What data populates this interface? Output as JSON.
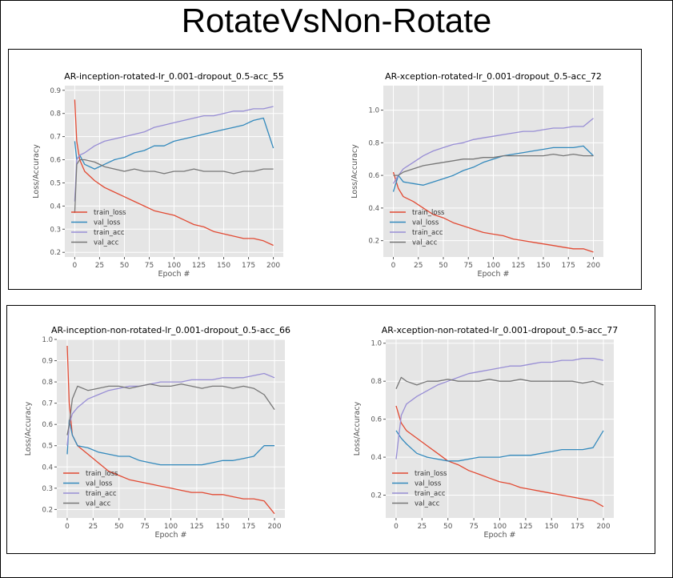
{
  "page_title": "RotateVsNon-Rotate",
  "colors": {
    "train_loss": "#E24A33",
    "val_loss": "#348ABD",
    "train_acc": "#988ED5",
    "val_acc": "#777777",
    "plot_bg": "#E5E5E5",
    "grid": "#FFFFFF"
  },
  "chart_data": [
    {
      "type": "line",
      "title": "AR-inception-rotated-lr_0.001-dropout_0.5-acc_55",
      "xlabel": "Epoch #",
      "ylabel": "Loss/Accuracy",
      "xlim": [
        -10,
        210
      ],
      "ylim": [
        0.18,
        0.92
      ],
      "xticks": [
        0,
        25,
        50,
        75,
        100,
        125,
        150,
        175,
        200
      ],
      "yticks": [
        0.2,
        0.3,
        0.4,
        0.5,
        0.6,
        0.7,
        0.8,
        0.9
      ],
      "legend_position": "lower-left",
      "series": [
        {
          "name": "train_loss",
          "x": [
            0,
            2,
            5,
            10,
            20,
            30,
            40,
            50,
            60,
            70,
            80,
            90,
            100,
            110,
            120,
            130,
            140,
            150,
            160,
            170,
            180,
            190,
            200
          ],
          "values": [
            0.86,
            0.68,
            0.6,
            0.55,
            0.51,
            0.48,
            0.46,
            0.44,
            0.42,
            0.4,
            0.38,
            0.37,
            0.36,
            0.34,
            0.32,
            0.31,
            0.29,
            0.28,
            0.27,
            0.26,
            0.26,
            0.25,
            0.23
          ]
        },
        {
          "name": "val_loss",
          "x": [
            0,
            2,
            5,
            10,
            20,
            30,
            40,
            50,
            60,
            70,
            80,
            90,
            100,
            110,
            120,
            130,
            140,
            150,
            160,
            170,
            180,
            190,
            200
          ],
          "values": [
            0.68,
            0.6,
            0.62,
            0.58,
            0.56,
            0.58,
            0.6,
            0.61,
            0.63,
            0.64,
            0.66,
            0.66,
            0.68,
            0.69,
            0.7,
            0.71,
            0.72,
            0.73,
            0.74,
            0.75,
            0.77,
            0.78,
            0.65
          ]
        },
        {
          "name": "train_acc",
          "x": [
            0,
            2,
            5,
            10,
            20,
            30,
            40,
            50,
            60,
            70,
            80,
            90,
            100,
            110,
            120,
            130,
            140,
            150,
            160,
            170,
            180,
            190,
            200
          ],
          "values": [
            0.42,
            0.6,
            0.62,
            0.63,
            0.66,
            0.68,
            0.69,
            0.7,
            0.71,
            0.72,
            0.74,
            0.75,
            0.76,
            0.77,
            0.78,
            0.79,
            0.79,
            0.8,
            0.81,
            0.81,
            0.82,
            0.82,
            0.83
          ]
        },
        {
          "name": "val_acc",
          "x": [
            0,
            2,
            5,
            10,
            20,
            30,
            40,
            50,
            60,
            70,
            80,
            90,
            100,
            110,
            120,
            130,
            140,
            150,
            160,
            170,
            180,
            190,
            200
          ],
          "values": [
            0.37,
            0.58,
            0.6,
            0.6,
            0.59,
            0.57,
            0.56,
            0.55,
            0.56,
            0.55,
            0.55,
            0.54,
            0.55,
            0.55,
            0.56,
            0.55,
            0.55,
            0.55,
            0.54,
            0.55,
            0.55,
            0.56,
            0.56
          ]
        }
      ]
    },
    {
      "type": "line",
      "title": "AR-xception-rotated-lr_0.001-dropout_0.5-acc_72",
      "xlabel": "Epoch #",
      "ylabel": "Loss/Accuracy",
      "xlim": [
        -10,
        210
      ],
      "ylim": [
        0.1,
        1.15
      ],
      "xticks": [
        0,
        25,
        50,
        75,
        100,
        125,
        150,
        175,
        200
      ],
      "yticks": [
        0.2,
        0.4,
        0.6,
        0.8,
        1.0
      ],
      "legend_position": "lower-left",
      "series": [
        {
          "name": "train_loss",
          "x": [
            0,
            5,
            10,
            20,
            30,
            40,
            50,
            60,
            70,
            80,
            90,
            100,
            110,
            120,
            130,
            140,
            150,
            160,
            170,
            180,
            190,
            200
          ],
          "values": [
            0.62,
            0.52,
            0.47,
            0.44,
            0.4,
            0.36,
            0.34,
            0.31,
            0.29,
            0.27,
            0.25,
            0.24,
            0.23,
            0.21,
            0.2,
            0.19,
            0.18,
            0.17,
            0.16,
            0.15,
            0.15,
            0.13
          ]
        },
        {
          "name": "val_loss",
          "x": [
            0,
            5,
            10,
            20,
            30,
            40,
            50,
            60,
            70,
            80,
            90,
            100,
            110,
            120,
            130,
            140,
            150,
            160,
            170,
            180,
            190,
            200
          ],
          "values": [
            0.5,
            0.6,
            0.56,
            0.55,
            0.54,
            0.56,
            0.58,
            0.6,
            0.63,
            0.65,
            0.68,
            0.7,
            0.72,
            0.73,
            0.74,
            0.75,
            0.76,
            0.77,
            0.77,
            0.77,
            0.78,
            0.72
          ]
        },
        {
          "name": "train_acc",
          "x": [
            0,
            5,
            10,
            20,
            30,
            40,
            50,
            60,
            70,
            80,
            90,
            100,
            110,
            120,
            130,
            140,
            150,
            160,
            170,
            180,
            190,
            200
          ],
          "values": [
            0.55,
            0.6,
            0.64,
            0.68,
            0.72,
            0.75,
            0.77,
            0.79,
            0.8,
            0.82,
            0.83,
            0.84,
            0.85,
            0.86,
            0.87,
            0.87,
            0.88,
            0.89,
            0.89,
            0.9,
            0.9,
            0.95
          ]
        },
        {
          "name": "val_acc",
          "x": [
            0,
            5,
            10,
            20,
            30,
            40,
            50,
            60,
            70,
            80,
            90,
            100,
            110,
            120,
            130,
            140,
            150,
            160,
            170,
            180,
            190,
            200
          ],
          "values": [
            0.6,
            0.6,
            0.62,
            0.64,
            0.66,
            0.67,
            0.68,
            0.69,
            0.7,
            0.7,
            0.71,
            0.71,
            0.72,
            0.72,
            0.72,
            0.72,
            0.72,
            0.73,
            0.72,
            0.73,
            0.72,
            0.72
          ]
        }
      ]
    },
    {
      "type": "line",
      "title": "AR-inception-non-rotated-lr_0.001-dropout_0.5-acc_66",
      "xlabel": "Epoch #",
      "ylabel": "Loss/Accuracy",
      "xlim": [
        -10,
        210
      ],
      "ylim": [
        0.16,
        1.0
      ],
      "xticks": [
        0,
        25,
        50,
        75,
        100,
        125,
        150,
        175,
        200
      ],
      "yticks": [
        0.2,
        0.3,
        0.4,
        0.5,
        0.6,
        0.7,
        0.8,
        0.9,
        1.0
      ],
      "legend_position": "lower-left",
      "series": [
        {
          "name": "train_loss",
          "x": [
            0,
            2,
            5,
            10,
            20,
            30,
            40,
            50,
            60,
            70,
            80,
            90,
            100,
            110,
            120,
            130,
            140,
            150,
            160,
            170,
            180,
            190,
            200
          ],
          "values": [
            0.97,
            0.7,
            0.55,
            0.5,
            0.46,
            0.42,
            0.38,
            0.36,
            0.34,
            0.33,
            0.32,
            0.31,
            0.3,
            0.29,
            0.28,
            0.28,
            0.27,
            0.27,
            0.26,
            0.25,
            0.25,
            0.24,
            0.18
          ]
        },
        {
          "name": "val_loss",
          "x": [
            0,
            2,
            5,
            10,
            20,
            30,
            40,
            50,
            60,
            70,
            80,
            90,
            100,
            110,
            120,
            130,
            140,
            150,
            160,
            170,
            180,
            190,
            200
          ],
          "values": [
            0.46,
            0.62,
            0.55,
            0.5,
            0.49,
            0.47,
            0.46,
            0.45,
            0.45,
            0.43,
            0.42,
            0.41,
            0.41,
            0.41,
            0.41,
            0.41,
            0.42,
            0.43,
            0.43,
            0.44,
            0.45,
            0.5,
            0.5
          ]
        },
        {
          "name": "train_acc",
          "x": [
            0,
            2,
            5,
            10,
            20,
            30,
            40,
            50,
            60,
            70,
            80,
            90,
            100,
            110,
            120,
            130,
            140,
            150,
            160,
            170,
            180,
            190,
            200
          ],
          "values": [
            0.5,
            0.6,
            0.65,
            0.68,
            0.72,
            0.74,
            0.76,
            0.77,
            0.78,
            0.78,
            0.79,
            0.8,
            0.8,
            0.8,
            0.81,
            0.81,
            0.81,
            0.82,
            0.82,
            0.82,
            0.83,
            0.84,
            0.82
          ]
        },
        {
          "name": "val_acc",
          "x": [
            0,
            2,
            5,
            10,
            20,
            30,
            40,
            50,
            60,
            70,
            80,
            90,
            100,
            110,
            120,
            130,
            140,
            150,
            160,
            170,
            180,
            190,
            200
          ],
          "values": [
            0.55,
            0.6,
            0.72,
            0.78,
            0.76,
            0.77,
            0.78,
            0.78,
            0.77,
            0.78,
            0.79,
            0.78,
            0.78,
            0.79,
            0.78,
            0.77,
            0.78,
            0.78,
            0.77,
            0.78,
            0.77,
            0.74,
            0.67
          ]
        }
      ]
    },
    {
      "type": "line",
      "title": "AR-xception-non-rotated-lr_0.001-dropout_0.5-acc_77",
      "xlabel": "Epoch #",
      "ylabel": "Loss/Accuracy",
      "xlim": [
        -10,
        210
      ],
      "ylim": [
        0.08,
        1.02
      ],
      "xticks": [
        0,
        25,
        50,
        75,
        100,
        125,
        150,
        175,
        200
      ],
      "yticks": [
        0.2,
        0.4,
        0.6,
        0.8,
        1.0
      ],
      "legend_position": "lower-left",
      "series": [
        {
          "name": "train_loss",
          "x": [
            0,
            5,
            10,
            20,
            30,
            40,
            50,
            60,
            70,
            80,
            90,
            100,
            110,
            120,
            130,
            140,
            150,
            160,
            170,
            180,
            190,
            200
          ],
          "values": [
            0.67,
            0.58,
            0.54,
            0.5,
            0.46,
            0.42,
            0.38,
            0.36,
            0.33,
            0.31,
            0.29,
            0.27,
            0.26,
            0.24,
            0.23,
            0.22,
            0.21,
            0.2,
            0.19,
            0.18,
            0.17,
            0.14
          ]
        },
        {
          "name": "val_loss",
          "x": [
            0,
            5,
            10,
            20,
            30,
            40,
            50,
            60,
            70,
            80,
            90,
            100,
            110,
            120,
            130,
            140,
            150,
            160,
            170,
            180,
            190,
            200
          ],
          "values": [
            0.54,
            0.5,
            0.47,
            0.42,
            0.4,
            0.39,
            0.38,
            0.38,
            0.39,
            0.4,
            0.4,
            0.4,
            0.41,
            0.41,
            0.41,
            0.42,
            0.43,
            0.44,
            0.44,
            0.44,
            0.45,
            0.54
          ]
        },
        {
          "name": "train_acc",
          "x": [
            0,
            5,
            10,
            20,
            30,
            40,
            50,
            60,
            70,
            80,
            90,
            100,
            110,
            120,
            130,
            140,
            150,
            160,
            170,
            180,
            190,
            200
          ],
          "values": [
            0.39,
            0.62,
            0.68,
            0.72,
            0.75,
            0.78,
            0.8,
            0.82,
            0.84,
            0.85,
            0.86,
            0.87,
            0.88,
            0.88,
            0.89,
            0.9,
            0.9,
            0.91,
            0.91,
            0.92,
            0.92,
            0.91
          ]
        },
        {
          "name": "val_acc",
          "x": [
            0,
            5,
            10,
            20,
            30,
            40,
            50,
            60,
            70,
            80,
            90,
            100,
            110,
            120,
            130,
            140,
            150,
            160,
            170,
            180,
            190,
            200
          ],
          "values": [
            0.76,
            0.82,
            0.8,
            0.78,
            0.8,
            0.8,
            0.81,
            0.8,
            0.8,
            0.8,
            0.81,
            0.8,
            0.8,
            0.81,
            0.8,
            0.8,
            0.8,
            0.8,
            0.8,
            0.79,
            0.8,
            0.78
          ]
        }
      ]
    }
  ]
}
